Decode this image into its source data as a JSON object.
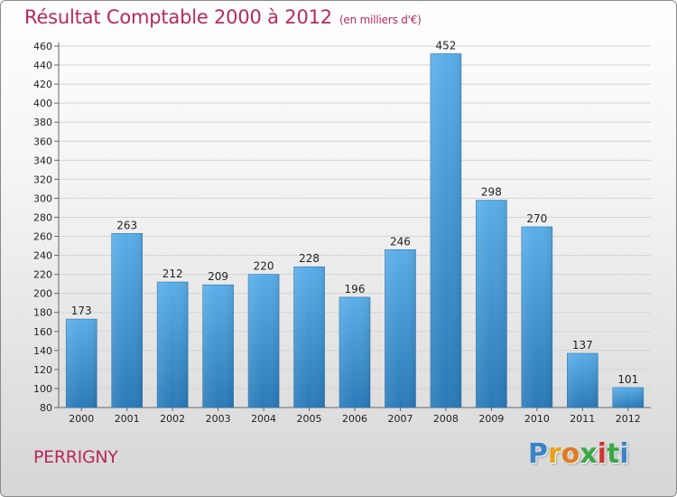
{
  "header": {
    "title": "Résultat Comptable 2000 à 2012",
    "subtitle": "(en milliers d'€)"
  },
  "footer": {
    "town": "PERRIGNY",
    "logo": "Proxiti"
  },
  "colors": {
    "title": "#b8285f",
    "bar_top": "#5aaee8",
    "bar_bottom": "#2a7ab8"
  },
  "chart_data": {
    "type": "bar",
    "title": "Résultat Comptable 2000 à 2012",
    "subtitle": "(en milliers d'€)",
    "xlabel": "",
    "ylabel": "",
    "categories": [
      "2000",
      "2001",
      "2002",
      "2003",
      "2004",
      "2005",
      "2006",
      "2007",
      "2008",
      "2009",
      "2010",
      "2011",
      "2012"
    ],
    "values": [
      173,
      263,
      212,
      209,
      220,
      228,
      196,
      246,
      452,
      298,
      270,
      137,
      101
    ],
    "ylim": [
      80,
      460
    ],
    "yticks": [
      80,
      100,
      120,
      140,
      160,
      180,
      200,
      220,
      240,
      260,
      280,
      300,
      320,
      340,
      360,
      380,
      400,
      420,
      440,
      460
    ],
    "grid": true,
    "data_labels": true
  }
}
